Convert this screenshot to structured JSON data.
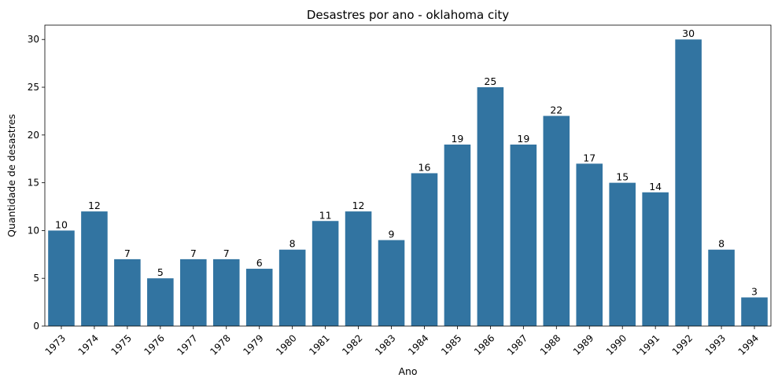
{
  "colors": {
    "bar": "#3274a1",
    "axis": "#000000",
    "background": "#ffffff"
  },
  "chart_data": {
    "type": "bar",
    "title": "Desastres por ano - oklahoma city",
    "xlabel": "Ano",
    "ylabel": "Quantidade de desastres",
    "categories": [
      "1973",
      "1974",
      "1975",
      "1976",
      "1977",
      "1978",
      "1979",
      "1980",
      "1981",
      "1982",
      "1983",
      "1984",
      "1985",
      "1986",
      "1987",
      "1988",
      "1989",
      "1990",
      "1991",
      "1992",
      "1993",
      "1994"
    ],
    "values": [
      10,
      12,
      7,
      5,
      7,
      7,
      6,
      8,
      11,
      12,
      9,
      16,
      19,
      25,
      19,
      22,
      17,
      15,
      14,
      30,
      8,
      3
    ],
    "ylim": [
      0,
      31.5
    ],
    "yticks": [
      0,
      5,
      10,
      15,
      20,
      25,
      30
    ],
    "grid": false,
    "data_labels": true,
    "xtick_rotation": -45
  }
}
